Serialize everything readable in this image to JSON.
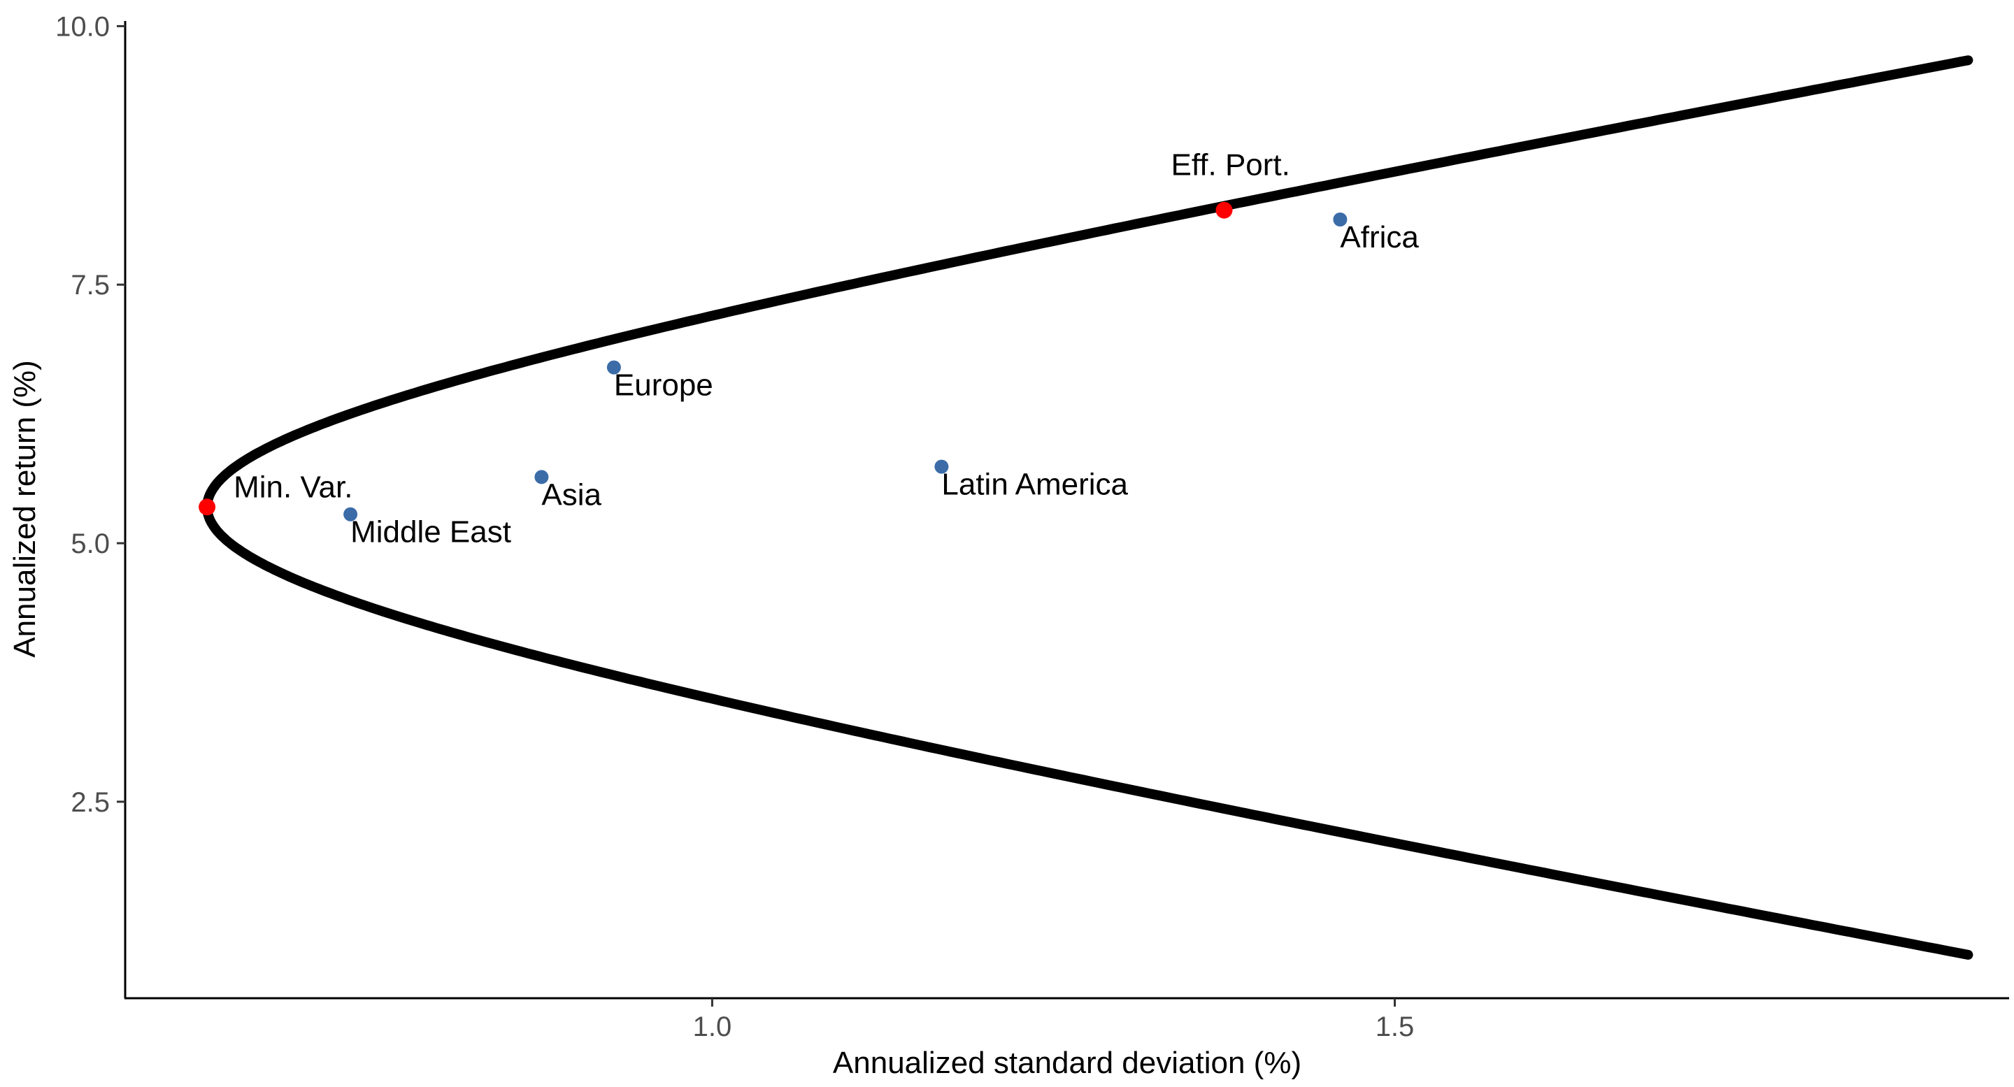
{
  "chart_data": {
    "type": "scatter",
    "title": "",
    "xlabel": "Annualized standard deviation (%)",
    "ylabel": "Annualized return (%)",
    "xlim": [
      0.57,
      1.95
    ],
    "ylim": [
      0.6,
      10.05
    ],
    "x_ticks": [
      {
        "value": 1.0,
        "label": "1.0"
      },
      {
        "value": 1.5,
        "label": "1.5"
      }
    ],
    "y_ticks": [
      {
        "value": 2.5,
        "label": "2.5"
      },
      {
        "value": 5.0,
        "label": "5.0"
      },
      {
        "value": 7.5,
        "label": "7.5"
      },
      {
        "value": 10.0,
        "label": "10.0"
      }
    ],
    "grid": false,
    "frontier": {
      "color": "#000000",
      "min_var_sd": 0.63,
      "min_var_return": 5.35,
      "points": [
        {
          "sd": 1.92,
          "ret": 9.67
        },
        {
          "sd": 1.58,
          "ret": 8.6
        },
        {
          "sd": 1.375,
          "ret": 8.22
        },
        {
          "sd": 1.17,
          "ret": 7.7
        },
        {
          "sd": 1.0,
          "ret": 7.15
        },
        {
          "sd": 0.84,
          "ret": 6.45
        },
        {
          "sd": 0.7,
          "ret": 5.85
        },
        {
          "sd": 0.63,
          "ret": 5.35
        },
        {
          "sd": 0.7,
          "ret": 4.8
        },
        {
          "sd": 0.84,
          "ret": 4.22
        },
        {
          "sd": 1.0,
          "ret": 3.6
        },
        {
          "sd": 1.2,
          "ret": 2.98
        },
        {
          "sd": 1.58,
          "ret": 2.05
        },
        {
          "sd": 1.92,
          "ret": 1.02
        }
      ]
    },
    "series": [
      {
        "color": "#3b6ca8",
        "points": [
          {
            "label": "Middle East",
            "x": 0.735,
            "y": 5.28
          },
          {
            "label": "Asia",
            "x": 0.875,
            "y": 5.64
          },
          {
            "label": "Europe",
            "x": 0.928,
            "y": 6.7
          },
          {
            "label": "Latin America",
            "x": 1.168,
            "y": 5.74
          },
          {
            "label": "Africa",
            "x": 1.46,
            "y": 8.13
          }
        ]
      },
      {
        "color": "#ff0000",
        "points": [
          {
            "label": "Min. Var.",
            "x": 0.63,
            "y": 5.35
          },
          {
            "label": "Eff. Port.",
            "x": 1.375,
            "y": 8.22
          }
        ]
      }
    ]
  }
}
